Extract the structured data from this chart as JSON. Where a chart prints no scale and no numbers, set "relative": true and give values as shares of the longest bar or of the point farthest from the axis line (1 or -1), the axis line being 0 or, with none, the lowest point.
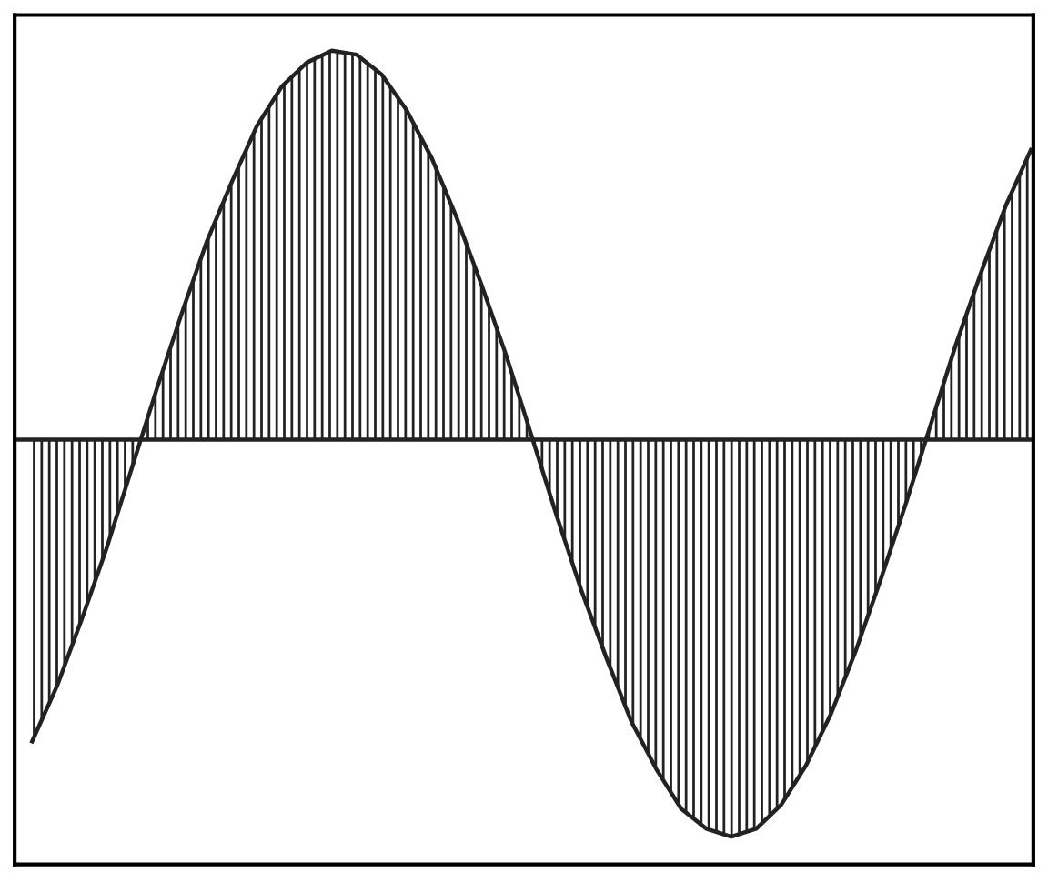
{
  "chart_data": {
    "type": "area",
    "relative": true,
    "color": "#222222",
    "tick_labels": false,
    "categories": [
      null,
      null,
      null,
      null,
      null,
      null,
      null,
      null,
      null,
      null,
      null,
      null,
      null,
      null,
      null,
      null,
      null,
      null,
      null,
      null,
      null,
      null,
      null,
      null,
      null,
      null,
      null,
      null,
      null,
      null,
      null,
      null,
      null,
      null,
      null,
      null,
      null,
      null,
      null,
      null,
      null
    ],
    "values": [
      -0.76,
      -0.62,
      -0.45,
      -0.27,
      -0.07,
      0.13,
      0.32,
      0.5,
      0.65,
      0.79,
      0.89,
      0.95,
      0.98,
      0.97,
      0.92,
      0.83,
      0.71,
      0.56,
      0.39,
      0.21,
      0.01,
      -0.19,
      -0.38,
      -0.55,
      -0.71,
      -0.83,
      -0.93,
      -0.98,
      -1.0,
      -0.98,
      -0.92,
      -0.82,
      -0.69,
      -0.53,
      -0.35,
      -0.16,
      0.04,
      0.24,
      0.42,
      0.59,
      0.73
    ]
  }
}
